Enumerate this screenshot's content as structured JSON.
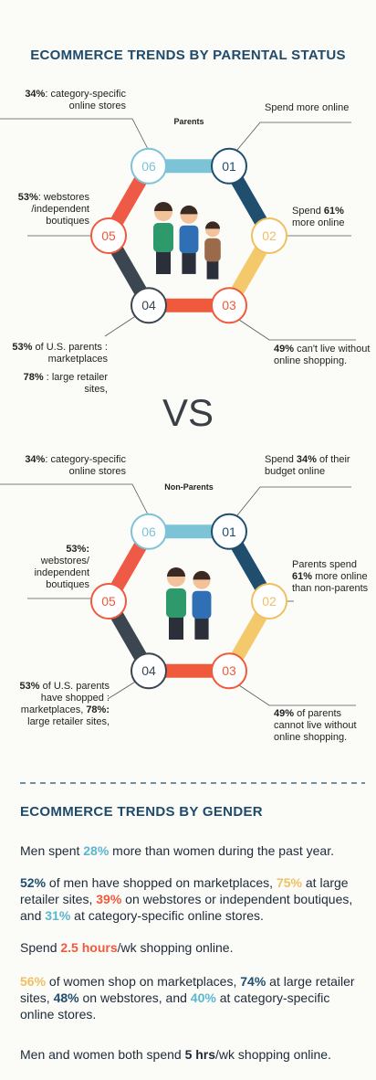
{
  "parental": {
    "title": "ECOMMERCE TRENDS BY PARENTAL STATUS",
    "vs": "VS",
    "groups": [
      {
        "label": "Parents",
        "nodes": [
          "01",
          "02",
          "03",
          "04",
          "05",
          "06"
        ],
        "notes": [
          [
            {
              "t": "34%",
              "b": true
            },
            {
              "t": ": category-specific\nonline stores"
            }
          ],
          [
            {
              "t": "Spend more online"
            }
          ],
          [
            {
              "t": "53%",
              "b": true
            },
            {
              "t": ": webstores\n/independent\nboutiques"
            }
          ],
          [
            {
              "t": "Spend "
            },
            {
              "t": "61%",
              "b": true
            },
            {
              "t": "\nmore online"
            }
          ],
          [
            {
              "t": "53%",
              "b": true
            },
            {
              "t": " of U.S. parents :\nmarketplaces"
            }
          ],
          [
            {
              "t": "78%",
              "b": true
            },
            {
              "t": " : large retailer\nsites,"
            }
          ],
          [
            {
              "t": "49%",
              "b": true
            },
            {
              "t": " can't live without\nonline shopping."
            }
          ]
        ]
      },
      {
        "label": "Non-Parents",
        "nodes": [
          "01",
          "02",
          "03",
          "04",
          "05",
          "06"
        ],
        "notes": [
          [
            {
              "t": "34%",
              "b": true
            },
            {
              "t": ": category-specific\nonline stores"
            }
          ],
          [
            {
              "t": "Spend "
            },
            {
              "t": "34%",
              "b": true
            },
            {
              "t": " of their\nbudget online"
            }
          ],
          [
            {
              "t": "53%:",
              "b": true
            },
            {
              "t": "\nwebstores/\nindependent\nboutiques"
            }
          ],
          [
            {
              "t": "Parents spend\n"
            },
            {
              "t": "61%",
              "b": true
            },
            {
              "t": " more online\nthan non-parents"
            }
          ],
          [
            {
              "t": "53%",
              "b": true
            },
            {
              "t": " of U.S. parents\nhave shopped :\nmarketplaces, "
            },
            {
              "t": "78%:",
              "b": true
            },
            {
              "t": "\nlarge retailer sites,"
            }
          ],
          [
            {
              "t": "49%",
              "b": true
            },
            {
              "t": " of parents\ncannot live without\nonline shopping."
            }
          ]
        ]
      }
    ]
  },
  "gender": {
    "title": "ECOMMERCE TRENDS BY GENDER",
    "paragraphs": [
      [
        {
          "t": "Men spent "
        },
        {
          "t": "28%",
          "c": "#5bb6d0"
        },
        {
          "t": " more than women during the past year."
        }
      ],
      [
        {
          "t": "52%",
          "c": "#1f4e6e"
        },
        {
          "t": " of men have shopped on marketplaces, "
        },
        {
          "t": "75%",
          "c": "#f0c060"
        },
        {
          "t": " at large retailer sites, "
        },
        {
          "t": "39%",
          "c": "#f05a3c"
        },
        {
          "t": " on webstores or independent boutiques, and "
        },
        {
          "t": "31%",
          "c": "#5bb6d0"
        },
        {
          "t": " at category-specific online stores."
        }
      ],
      [
        {
          "t": "Spend "
        },
        {
          "t": "2.5 hours",
          "c": "#f05a3c"
        },
        {
          "t": "/wk shopping online."
        }
      ],
      [
        {
          "t": "56%",
          "c": "#f0c060"
        },
        {
          "t": " of women shop on marketplaces, "
        },
        {
          "t": "74%",
          "c": "#1f4e6e"
        },
        {
          "t": " at large retailer sites, "
        },
        {
          "t": "48%",
          "c": "#1f4e6e"
        },
        {
          "t": " on webstores, and "
        },
        {
          "t": "40%",
          "c": "#5bb6d0"
        },
        {
          "t": " at category-specific online stores."
        }
      ],
      [
        {
          "t": "Men and women both spend "
        },
        {
          "t": "5 hrs",
          "b": true
        },
        {
          "t": "/wk shopping online."
        }
      ]
    ]
  }
}
